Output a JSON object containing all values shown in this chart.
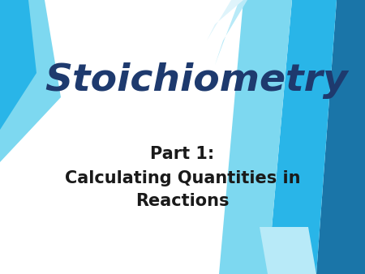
{
  "title": "Stoichiometry",
  "subtitle_line1": "Part 1:",
  "subtitle_line2": "Calculating Quantities in",
  "subtitle_line3": "Reactions",
  "bg_color": "#ffffff",
  "title_color": "#1e3a6e",
  "subtitle_color": "#1a1a1a",
  "title_fontsize": 34,
  "subtitle_fontsize": 15,
  "colors": {
    "dark_blue": "#1a75a8",
    "mid_blue": "#29b5e8",
    "light_blue": "#7dd8f0",
    "very_light_blue": "#b8eaf8",
    "steel_blue": "#2e86c1"
  }
}
